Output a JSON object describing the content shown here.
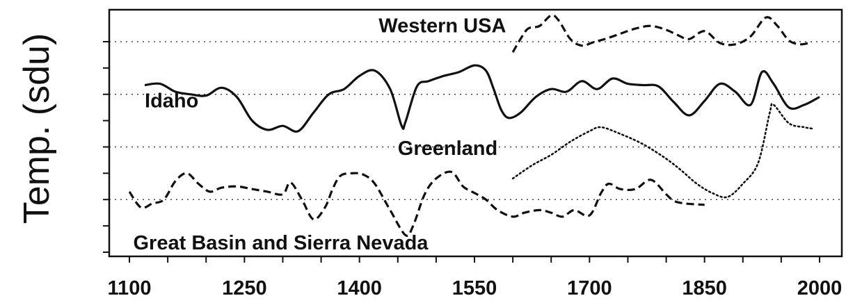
{
  "chart_data": {
    "type": "line",
    "ylabel": "Temp. (sdu)",
    "xlabel": "",
    "title": "",
    "xlim": [
      1100,
      2000
    ],
    "ylim": [
      0,
      8
    ],
    "y_gridlines": [
      2,
      4,
      6,
      8
    ],
    "grid": "horizontal-dotted",
    "xticks": [
      1100,
      1250,
      1400,
      1550,
      1700,
      1850,
      2000
    ],
    "series": [
      {
        "name": "Western USA",
        "style": "dashed",
        "label_pos": [
          1425,
          8.35
        ],
        "x": [
          1600,
          1610,
          1620,
          1635,
          1650,
          1660,
          1675,
          1690,
          1705,
          1720,
          1740,
          1760,
          1780,
          1800,
          1815,
          1830,
          1850,
          1870,
          1890,
          1910,
          1930,
          1945,
          1960,
          1975,
          1990
        ],
        "y": [
          7.6,
          8.1,
          8.5,
          8.6,
          9.0,
          8.8,
          8.1,
          7.85,
          7.98,
          8.1,
          8.3,
          8.5,
          8.6,
          8.45,
          8.25,
          8.1,
          8.4,
          7.95,
          7.9,
          8.2,
          8.92,
          8.6,
          8.05,
          7.9,
          7.98
        ]
      },
      {
        "name": "Idaho",
        "style": "solid",
        "label_pos": [
          1120,
          5.5
        ],
        "x": [
          1120,
          1140,
          1160,
          1180,
          1200,
          1220,
          1240,
          1260,
          1280,
          1300,
          1320,
          1340,
          1360,
          1380,
          1400,
          1420,
          1440,
          1455,
          1460,
          1475,
          1490,
          1510,
          1530,
          1550,
          1565,
          1575,
          1585,
          1595,
          1610,
          1630,
          1650,
          1670,
          1690,
          1710,
          1730,
          1750,
          1770,
          1790,
          1810,
          1830,
          1850,
          1870,
          1890,
          1910,
          1925,
          1940,
          1960,
          1980,
          2000
        ],
        "y": [
          6.35,
          6.4,
          6.1,
          6.0,
          5.95,
          6.25,
          5.9,
          5.0,
          4.65,
          4.8,
          4.6,
          5.3,
          6.0,
          6.2,
          6.7,
          6.9,
          6.2,
          4.8,
          4.95,
          6.3,
          6.5,
          6.7,
          6.85,
          7.1,
          6.9,
          6.2,
          5.4,
          5.1,
          5.3,
          5.9,
          6.2,
          6.1,
          6.5,
          6.2,
          6.6,
          6.4,
          6.35,
          6.3,
          5.7,
          5.2,
          5.75,
          6.4,
          6.1,
          5.6,
          6.85,
          6.4,
          5.5,
          5.6,
          5.9
        ]
      },
      {
        "name": "Greenland",
        "style": "dotted",
        "label_pos": [
          1450,
          3.7
        ],
        "x": [
          1600,
          1625,
          1650,
          1675,
          1700,
          1715,
          1740,
          1770,
          1800,
          1820,
          1840,
          1860,
          1880,
          1900,
          1920,
          1935,
          1940,
          1960,
          1980,
          1990
        ],
        "y": [
          2.8,
          3.3,
          3.7,
          4.2,
          4.6,
          4.75,
          4.5,
          4.1,
          3.55,
          3.1,
          2.6,
          2.25,
          2.1,
          2.6,
          3.4,
          5.3,
          5.6,
          4.9,
          4.75,
          4.7
        ]
      },
      {
        "name": "Great Basin and Sierra Nevada",
        "style": "dashed",
        "label_pos": [
          1105,
          0.1
        ],
        "x": [
          1100,
          1115,
          1130,
          1145,
          1160,
          1175,
          1190,
          1205,
          1220,
          1240,
          1260,
          1280,
          1300,
          1310,
          1325,
          1340,
          1355,
          1365,
          1375,
          1390,
          1405,
          1420,
          1440,
          1460,
          1470,
          1485,
          1500,
          1520,
          1535,
          1550,
          1565,
          1580,
          1600,
          1615,
          1635,
          1650,
          1665,
          1680,
          1700,
          1715,
          1725,
          1740,
          1760,
          1780,
          1800,
          1810,
          1825,
          1850
        ],
        "y": [
          2.3,
          1.7,
          1.85,
          2.0,
          2.7,
          3.0,
          2.6,
          2.3,
          2.45,
          2.5,
          2.4,
          2.3,
          2.2,
          2.65,
          2.0,
          1.25,
          1.7,
          2.4,
          2.9,
          3.0,
          2.95,
          2.6,
          1.6,
          0.65,
          1.0,
          2.2,
          2.8,
          3.05,
          2.5,
          2.25,
          2.0,
          1.6,
          1.35,
          1.5,
          1.6,
          1.5,
          1.35,
          1.6,
          1.4,
          2.25,
          2.6,
          2.4,
          2.4,
          2.75,
          2.2,
          1.95,
          1.85,
          1.8
        ]
      }
    ]
  }
}
